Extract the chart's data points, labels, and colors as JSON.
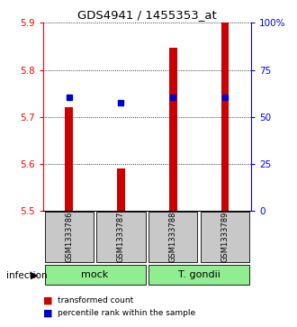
{
  "title": "GDS4941 / 1455353_at",
  "samples": [
    "GSM1333786",
    "GSM1333787",
    "GSM1333788",
    "GSM1333789"
  ],
  "red_bar_values": [
    5.72,
    5.59,
    5.848,
    5.9
  ],
  "blue_dot_values": [
    5.742,
    5.73,
    5.742,
    5.742
  ],
  "ylim": [
    5.5,
    5.9
  ],
  "yticks_left": [
    5.5,
    5.6,
    5.7,
    5.8,
    5.9
  ],
  "yticks_right_vals": [
    0,
    25,
    50,
    75,
    100
  ],
  "yticks_right_labels": [
    "0",
    "25",
    "50",
    "75",
    "100%"
  ],
  "groups": [
    {
      "label": "mock",
      "samples": [
        0,
        1
      ],
      "color": "#90ee90"
    },
    {
      "label": "T. gondii",
      "samples": [
        2,
        3
      ],
      "color": "#90ee90"
    }
  ],
  "group_label_prefix": "infection",
  "bar_color": "#cc0000",
  "dot_color": "#0000cc",
  "background_color": "#ffffff",
  "plot_bg_color": "#ffffff",
  "label_box_color": "#c8c8c8",
  "group_box_color": "#90ee90",
  "legend_red_label": "transformed count",
  "legend_blue_label": "percentile rank within the sample"
}
